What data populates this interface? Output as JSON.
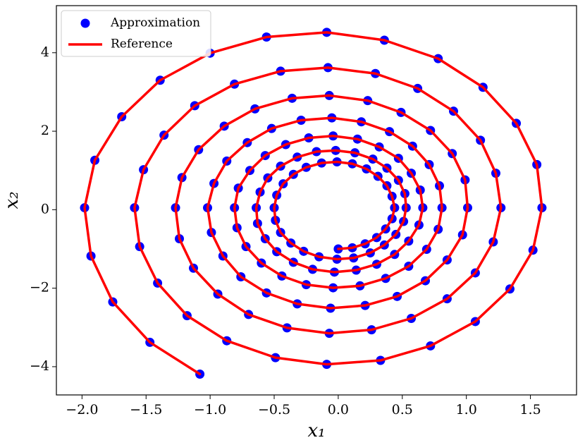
{
  "chart_data": {
    "type": "scatter",
    "xlabel": "x₁",
    "ylabel": "x₂",
    "xlim": [
      -2.2,
      1.86
    ],
    "ylim": [
      -4.72,
      5.2
    ],
    "xticks": [
      {
        "value": -2,
        "label": "−2.0"
      },
      {
        "value": -1.5,
        "label": "−1.5"
      },
      {
        "value": -1,
        "label": "−1.0"
      },
      {
        "value": -0.5,
        "label": "−0.5"
      },
      {
        "value": 0,
        "label": "0.0"
      },
      0.5,
      {
        "value": 1,
        "label": "1.0"
      },
      1.5
    ],
    "yticks": [
      {
        "value": -4,
        "label": "−4"
      },
      {
        "value": -2,
        "label": "−2"
      },
      0,
      2,
      4
    ],
    "grid": false,
    "legend": "upper left",
    "series": [
      {
        "name": "Approximation",
        "type": "scatter",
        "color": "#0000ff",
        "x": [
          -1.08,
          -1.47,
          -1.76,
          -1.93,
          -1.98,
          -1.9,
          -1.69,
          -1.39,
          -1.0,
          -0.56,
          -0.09,
          0.36,
          0.78,
          1.13,
          1.39,
          1.55,
          1.59,
          1.52,
          1.34,
          1.07,
          0.72,
          0.33,
          -0.09,
          -0.49,
          -0.87,
          -1.18,
          -1.41,
          -1.55,
          -1.59,
          -1.52,
          -1.36,
          -1.12,
          -0.81,
          -0.45,
          -0.08,
          0.29,
          0.62,
          0.9,
          1.11,
          1.23,
          1.27,
          1.21,
          1.07,
          0.85,
          0.57,
          0.26,
          -0.07,
          -0.4,
          -0.7,
          -0.94,
          -1.13,
          -1.24,
          -1.27,
          -1.22,
          -1.09,
          -0.89,
          -0.65,
          -0.36,
          -0.07,
          0.23,
          0.49,
          0.72,
          0.89,
          0.99,
          1.01,
          0.97,
          0.85,
          0.68,
          0.46,
          0.21,
          -0.06,
          -0.32,
          -0.56,
          -0.76,
          -0.9,
          -0.99,
          -1.02,
          -0.97,
          -0.87,
          -0.71,
          -0.52,
          -0.29,
          -0.05,
          0.18,
          0.4,
          0.58,
          0.71,
          0.79,
          0.81,
          0.78,
          0.69,
          0.55,
          0.37,
          0.17,
          -0.04,
          -0.25,
          -0.44,
          -0.6,
          -0.72,
          -0.79,
          -0.81,
          -0.78,
          -0.69,
          -0.57,
          -0.41,
          -0.23,
          -0.04,
          0.15,
          0.32,
          0.47,
          0.57,
          0.64,
          0.66,
          0.63,
          0.55,
          0.44,
          0.3,
          0.14,
          -0.03,
          -0.2,
          -0.35,
          -0.48,
          -0.57,
          -0.63,
          -0.64,
          -0.61,
          -0.55,
          -0.45,
          -0.32,
          -0.17,
          -0.02,
          0.13,
          0.27,
          0.38,
          0.47,
          0.52,
          0.53,
          0.51,
          0.45,
          0.36,
          0.25,
          0.12,
          -0.01,
          -0.15,
          -0.27,
          -0.37,
          -0.45,
          -0.49,
          -0.5,
          -0.48,
          -0.43,
          -0.35,
          -0.25,
          -0.13,
          -0.01,
          0.11,
          0.22,
          0.31,
          0.38,
          0.42,
          0.44,
          0.42,
          0.37,
          0.3,
          0.21,
          0.11,
          0
        ],
        "y": [
          -4.19,
          -3.38,
          -2.35,
          -1.18,
          0.05,
          1.26,
          2.37,
          3.3,
          3.99,
          4.4,
          4.52,
          4.32,
          3.85,
          3.12,
          2.2,
          1.15,
          0.05,
          -1.03,
          -2.02,
          -2.85,
          -3.47,
          -3.84,
          -3.94,
          -3.77,
          -3.34,
          -2.7,
          -1.87,
          -0.94,
          0.05,
          1.02,
          1.9,
          2.65,
          3.2,
          3.53,
          3.62,
          3.47,
          3.09,
          2.51,
          1.77,
          0.93,
          0.05,
          -0.82,
          -1.61,
          -2.27,
          -2.77,
          -3.06,
          -3.15,
          -3.01,
          -2.67,
          -2.15,
          -1.49,
          -0.74,
          0.05,
          0.82,
          1.53,
          2.13,
          2.57,
          2.84,
          2.91,
          2.78,
          2.48,
          2.02,
          1.43,
          0.76,
          0.05,
          -0.64,
          -1.28,
          -1.81,
          -2.21,
          -2.44,
          -2.51,
          -2.4,
          -2.12,
          -1.71,
          -1.18,
          -0.58,
          0.05,
          0.67,
          1.24,
          1.71,
          2.07,
          2.28,
          2.34,
          2.24,
          1.99,
          1.62,
          1.15,
          0.61,
          0.05,
          -0.5,
          -1.01,
          -1.44,
          -1.75,
          -1.94,
          -1.99,
          -1.91,
          -1.69,
          -1.36,
          -0.94,
          -0.46,
          0.05,
          0.55,
          1.0,
          1.38,
          1.66,
          1.83,
          1.88,
          1.8,
          1.6,
          1.31,
          0.93,
          0.5,
          0.05,
          -0.39,
          -0.8,
          -1.14,
          -1.39,
          -1.54,
          -1.59,
          -1.52,
          -1.34,
          -1.07,
          -0.74,
          -0.35,
          0.05,
          0.45,
          0.81,
          1.11,
          1.34,
          1.48,
          1.51,
          1.45,
          1.29,
          1.06,
          0.75,
          0.41,
          0.05,
          -0.3,
          -0.63,
          -0.9,
          -1.1,
          -1.23,
          -1.26,
          -1.2,
          -1.06,
          -0.85,
          -0.58,
          -0.27,
          0.05,
          0.37,
          0.66,
          0.9,
          1.08,
          1.19,
          1.22,
          1.17,
          1.04,
          0.85,
          0.61,
          0.34,
          0.05,
          -0.23,
          -0.49,
          -0.71,
          -0.87,
          -0.97,
          -1.0
        ]
      },
      {
        "name": "Reference",
        "type": "line",
        "color": "#ff0000",
        "x": [
          -1.08,
          -1.47,
          -1.76,
          -1.93,
          -1.98,
          -1.9,
          -1.69,
          -1.39,
          -1.0,
          -0.56,
          -0.09,
          0.36,
          0.78,
          1.13,
          1.39,
          1.55,
          1.59,
          1.52,
          1.34,
          1.07,
          0.72,
          0.33,
          -0.09,
          -0.49,
          -0.87,
          -1.18,
          -1.41,
          -1.55,
          -1.59,
          -1.52,
          -1.36,
          -1.12,
          -0.81,
          -0.45,
          -0.08,
          0.29,
          0.62,
          0.9,
          1.11,
          1.23,
          1.27,
          1.21,
          1.07,
          0.85,
          0.57,
          0.26,
          -0.07,
          -0.4,
          -0.7,
          -0.94,
          -1.13,
          -1.24,
          -1.27,
          -1.22,
          -1.09,
          -0.89,
          -0.65,
          -0.36,
          -0.07,
          0.23,
          0.49,
          0.72,
          0.89,
          0.99,
          1.01,
          0.97,
          0.85,
          0.68,
          0.46,
          0.21,
          -0.06,
          -0.32,
          -0.56,
          -0.76,
          -0.9,
          -0.99,
          -1.02,
          -0.97,
          -0.87,
          -0.71,
          -0.52,
          -0.29,
          -0.05,
          0.18,
          0.4,
          0.58,
          0.71,
          0.79,
          0.81,
          0.78,
          0.69,
          0.55,
          0.37,
          0.17,
          -0.04,
          -0.25,
          -0.44,
          -0.6,
          -0.72,
          -0.79,
          -0.81,
          -0.78,
          -0.69,
          -0.57,
          -0.41,
          -0.23,
          -0.04,
          0.15,
          0.32,
          0.47,
          0.57,
          0.64,
          0.66,
          0.63,
          0.55,
          0.44,
          0.3,
          0.14,
          -0.03,
          -0.2,
          -0.35,
          -0.48,
          -0.57,
          -0.63,
          -0.64,
          -0.61,
          -0.55,
          -0.45,
          -0.32,
          -0.17,
          -0.02,
          0.13,
          0.27,
          0.38,
          0.47,
          0.52,
          0.53,
          0.51,
          0.45,
          0.36,
          0.25,
          0.12,
          -0.01,
          -0.15,
          -0.27,
          -0.37,
          -0.45,
          -0.49,
          -0.5,
          -0.48,
          -0.43,
          -0.35,
          -0.25,
          -0.13,
          -0.01,
          0.11,
          0.22,
          0.31,
          0.38,
          0.42,
          0.44,
          0.42,
          0.37,
          0.3,
          0.21,
          0.11,
          0
        ],
        "y": [
          -4.19,
          -3.38,
          -2.35,
          -1.18,
          0.05,
          1.26,
          2.37,
          3.3,
          3.99,
          4.4,
          4.52,
          4.32,
          3.85,
          3.12,
          2.2,
          1.15,
          0.05,
          -1.03,
          -2.02,
          -2.85,
          -3.47,
          -3.84,
          -3.94,
          -3.77,
          -3.34,
          -2.7,
          -1.87,
          -0.94,
          0.05,
          1.02,
          1.9,
          2.65,
          3.2,
          3.53,
          3.62,
          3.47,
          3.09,
          2.51,
          1.77,
          0.93,
          0.05,
          -0.82,
          -1.61,
          -2.27,
          -2.77,
          -3.06,
          -3.15,
          -3.01,
          -2.67,
          -2.15,
          -1.49,
          -0.74,
          0.05,
          0.82,
          1.53,
          2.13,
          2.57,
          2.84,
          2.91,
          2.78,
          2.48,
          2.02,
          1.43,
          0.76,
          0.05,
          -0.64,
          -1.28,
          -1.81,
          -2.21,
          -2.44,
          -2.51,
          -2.4,
          -2.12,
          -1.71,
          -1.18,
          -0.58,
          0.05,
          0.67,
          1.24,
          1.71,
          2.07,
          2.28,
          2.34,
          2.24,
          1.99,
          1.62,
          1.15,
          0.61,
          0.05,
          -0.5,
          -1.01,
          -1.44,
          -1.75,
          -1.94,
          -1.99,
          -1.91,
          -1.69,
          -1.36,
          -0.94,
          -0.46,
          0.05,
          0.55,
          1.0,
          1.38,
          1.66,
          1.83,
          1.88,
          1.8,
          1.6,
          1.31,
          0.93,
          0.5,
          0.05,
          -0.39,
          -0.8,
          -1.14,
          -1.39,
          -1.54,
          -1.59,
          -1.52,
          -1.34,
          -1.07,
          -0.74,
          -0.35,
          0.05,
          0.45,
          0.81,
          1.11,
          1.34,
          1.48,
          1.51,
          1.45,
          1.29,
          1.06,
          0.75,
          0.41,
          0.05,
          -0.3,
          -0.63,
          -0.9,
          -1.1,
          -1.23,
          -1.26,
          -1.2,
          -1.06,
          -0.85,
          -0.58,
          -0.27,
          0.05,
          0.37,
          0.66,
          0.9,
          1.08,
          1.19,
          1.22,
          1.17,
          1.04,
          0.85,
          0.61,
          0.34,
          0.05,
          -0.23,
          -0.49,
          -0.71,
          -0.87,
          -0.97,
          -1.0
        ]
      }
    ]
  }
}
